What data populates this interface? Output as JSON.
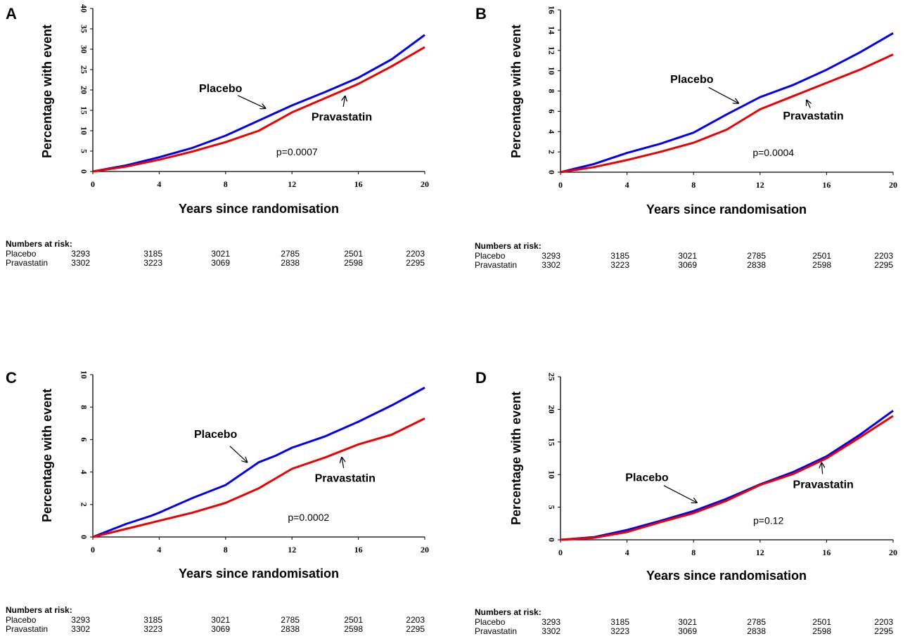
{
  "chart_data": [
    {
      "type": "line",
      "panel": "A",
      "xlabel": "Years since randomisation",
      "ylabel": "Percentage with event",
      "xlim": [
        0,
        20
      ],
      "ylim": [
        0,
        40
      ],
      "xticks": [
        0,
        4,
        8,
        12,
        16,
        20
      ],
      "yticks": [
        0,
        5,
        10,
        15,
        20,
        25,
        30,
        35,
        40
      ],
      "series": [
        {
          "name": "Placebo",
          "color": "#0000ee",
          "x": [
            0,
            2,
            4,
            6,
            8,
            10,
            12,
            14,
            16,
            18,
            20
          ],
          "y": [
            0,
            1.5,
            3.5,
            5.8,
            8.8,
            12.5,
            16.2,
            19.5,
            23,
            27.5,
            33.5
          ]
        },
        {
          "name": "Pravastatin",
          "color": "#ee0000",
          "x": [
            0,
            2,
            4,
            6,
            8,
            10,
            12,
            14,
            16,
            18,
            20
          ],
          "y": [
            0,
            1.2,
            2.9,
            4.9,
            7.2,
            10,
            14.5,
            18,
            21.5,
            25.8,
            30.5
          ]
        }
      ],
      "annotations": [
        {
          "text": "Placebo",
          "x": 7.7,
          "y": 19.5,
          "arrow_x": 10.4,
          "arrow_y": 15.5
        },
        {
          "text": "Pravastatin",
          "x": 15,
          "y": 12.5,
          "arrow_x": 15.2,
          "arrow_y": 18.5
        }
      ],
      "pvalue": "p=0.0007",
      "pvalue_pos": {
        "x": 12.3,
        "y": 4
      },
      "risk_table": {
        "title": "Numbers at risk:",
        "rows": [
          {
            "label": "Placebo",
            "values": [
              "3293",
              "3185",
              "3021",
              "2785",
              "2501",
              "2203"
            ]
          },
          {
            "label": "Pravastatin",
            "values": [
              "3302",
              "3223",
              "3069",
              "2838",
              "2598",
              "2295"
            ]
          }
        ]
      }
    },
    {
      "type": "line",
      "panel": "B",
      "xlabel": "Years since randomisation",
      "ylabel": "Percentage with event",
      "xlim": [
        0,
        20
      ],
      "ylim": [
        0,
        16
      ],
      "xticks": [
        0,
        4,
        8,
        12,
        16,
        20
      ],
      "yticks": [
        0,
        2,
        4,
        6,
        8,
        10,
        12,
        14,
        16
      ],
      "series": [
        {
          "name": "Placebo",
          "color": "#0000ee",
          "x": [
            0,
            2,
            4,
            6,
            8,
            10,
            12,
            14,
            16,
            18,
            20
          ],
          "y": [
            0,
            0.8,
            1.9,
            2.8,
            3.9,
            5.7,
            7.4,
            8.6,
            10.1,
            11.8,
            13.7
          ]
        },
        {
          "name": "Pravastatin",
          "color": "#ee0000",
          "x": [
            0,
            2,
            4,
            6,
            8,
            10,
            12,
            14,
            16,
            18,
            20
          ],
          "y": [
            0,
            0.5,
            1.2,
            2.0,
            2.9,
            4.2,
            6.2,
            7.5,
            8.8,
            10.1,
            11.6
          ]
        }
      ],
      "annotations": [
        {
          "text": "Placebo",
          "x": 7.9,
          "y": 8.8,
          "arrow_x": 10.7,
          "arrow_y": 6.8
        },
        {
          "text": "Pravastatin",
          "x": 15.2,
          "y": 5.2,
          "arrow_x": 14.8,
          "arrow_y": 7.1
        }
      ],
      "pvalue": "p=0.0004",
      "pvalue_pos": {
        "x": 12.8,
        "y": 1.6
      },
      "risk_table": {
        "title": "Numbers at risk:",
        "rows": [
          {
            "label": "Placebo",
            "values": [
              "3293",
              "3185",
              "3021",
              "2785",
              "2501",
              "2203"
            ]
          },
          {
            "label": "Pravastatin",
            "values": [
              "3302",
              "3223",
              "3069",
              "2838",
              "2598",
              "2295"
            ]
          }
        ]
      }
    },
    {
      "type": "line",
      "panel": "C",
      "xlabel": "Years since randomisation",
      "ylabel": "Percentage with event",
      "xlim": [
        0,
        20
      ],
      "ylim": [
        0,
        10
      ],
      "xticks": [
        0,
        4,
        8,
        12,
        16,
        20
      ],
      "yticks": [
        0,
        2,
        4,
        6,
        8,
        10
      ],
      "series": [
        {
          "name": "Placebo",
          "color": "#0000ee",
          "x": [
            0,
            2,
            3.5,
            4,
            6,
            8,
            10,
            11,
            12,
            14,
            16,
            18,
            20
          ],
          "y": [
            0,
            0.8,
            1.3,
            1.5,
            2.4,
            3.2,
            4.6,
            5.0,
            5.5,
            6.2,
            7.1,
            8.1,
            9.2
          ]
        },
        {
          "name": "Pravastatin",
          "color": "#ee0000",
          "x": [
            0,
            2,
            4,
            6,
            8,
            10,
            12,
            14,
            16,
            18,
            20
          ],
          "y": [
            0,
            0.5,
            1.0,
            1.5,
            2.1,
            3.0,
            4.2,
            4.9,
            5.7,
            6.3,
            7.3
          ]
        }
      ],
      "annotations": [
        {
          "text": "Placebo",
          "x": 7.4,
          "y": 6.1,
          "arrow_x": 9.3,
          "arrow_y": 4.6
        },
        {
          "text": "Pravastatin",
          "x": 15.2,
          "y": 3.4,
          "arrow_x": 15,
          "arrow_y": 4.9
        }
      ],
      "pvalue": "p=0.0002",
      "pvalue_pos": {
        "x": 13,
        "y": 1.0
      },
      "risk_table": {
        "title": "Numbers at risk:",
        "rows": [
          {
            "label": "Placebo",
            "values": [
              "3293",
              "3185",
              "3021",
              "2785",
              "2501",
              "2203"
            ]
          },
          {
            "label": "Pravastatin",
            "values": [
              "3302",
              "3223",
              "3069",
              "2838",
              "2598",
              "2295"
            ]
          }
        ]
      }
    },
    {
      "type": "line",
      "panel": "D",
      "xlabel": "Years since randomisation",
      "ylabel": "Percentage with event",
      "xlim": [
        0,
        20
      ],
      "ylim": [
        0,
        25
      ],
      "xticks": [
        0,
        4,
        8,
        12,
        16,
        20
      ],
      "yticks": [
        0,
        5,
        10,
        15,
        20,
        25
      ],
      "series": [
        {
          "name": "Placebo",
          "color": "#0000ee",
          "x": [
            0,
            2,
            4,
            6,
            8,
            10,
            12,
            14,
            16,
            18,
            20
          ],
          "y": [
            0,
            0.4,
            1.5,
            2.9,
            4.4,
            6.3,
            8.5,
            10.4,
            12.8,
            16.1,
            19.8
          ]
        },
        {
          "name": "Pravastatin",
          "color": "#ee0000",
          "x": [
            0,
            2,
            4,
            6,
            8,
            10,
            12,
            14,
            16,
            18,
            20
          ],
          "y": [
            0,
            0.3,
            1.2,
            2.7,
            4.1,
            6.0,
            8.4,
            10.1,
            12.5,
            15.7,
            19.0
          ]
        }
      ],
      "annotations": [
        {
          "text": "Placebo",
          "x": 5.2,
          "y": 9.0,
          "arrow_x": 8.2,
          "arrow_y": 5.7
        },
        {
          "text": "Pravastatin",
          "x": 15.8,
          "y": 7.9,
          "arrow_x": 15.7,
          "arrow_y": 11.8
        }
      ],
      "pvalue": "p=0.12",
      "pvalue_pos": {
        "x": 12.5,
        "y": 2.4
      },
      "risk_table": {
        "title": "Numbers at risk:",
        "rows": [
          {
            "label": "Placebo",
            "values": [
              "3293",
              "3185",
              "3021",
              "2785",
              "2501",
              "2203"
            ]
          },
          {
            "label": "Pravastatin",
            "values": [
              "3302",
              "3223",
              "3069",
              "2838",
              "2598",
              "2295"
            ]
          }
        ]
      }
    }
  ]
}
